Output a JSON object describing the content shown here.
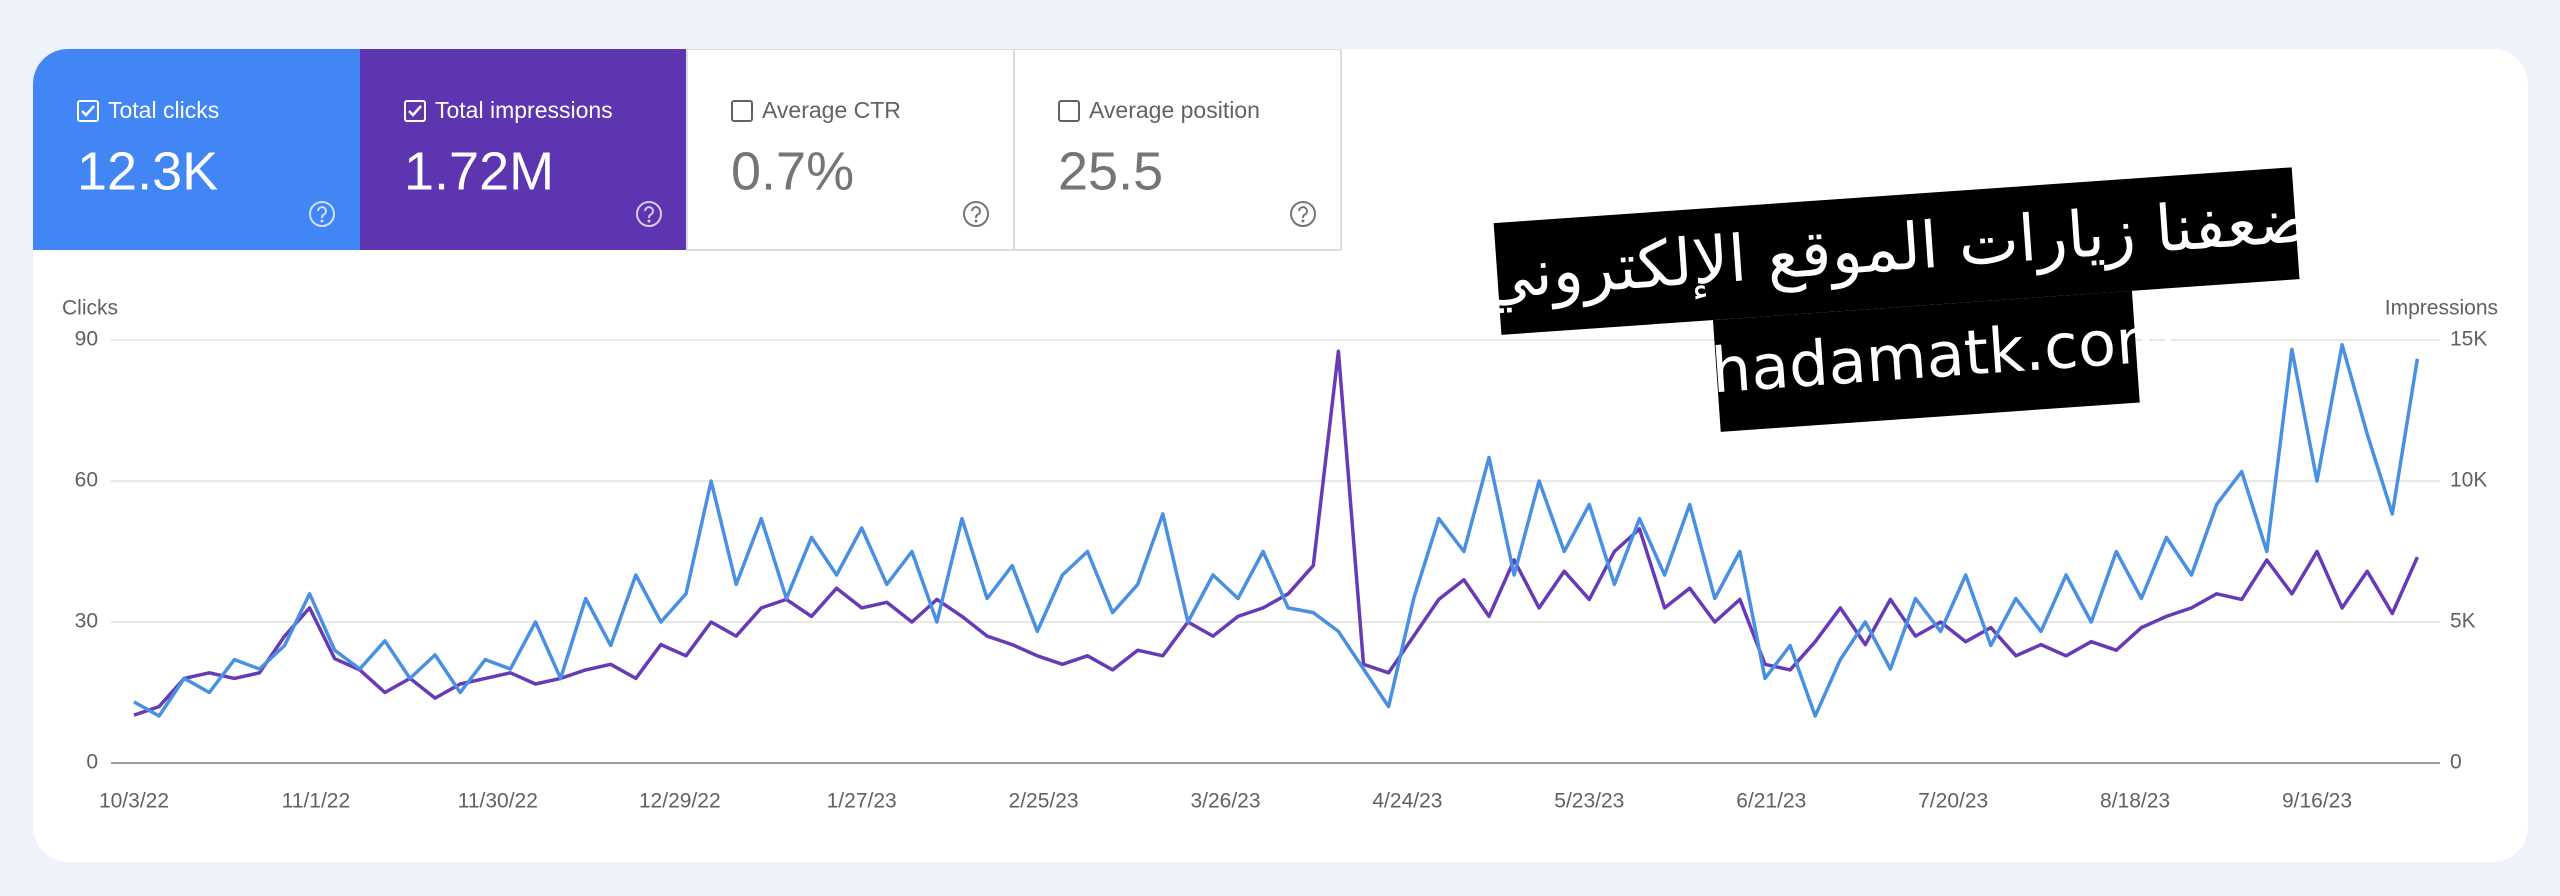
{
  "cards": [
    {
      "label": "Total clicks",
      "value": "12.3K",
      "checked": true,
      "color": "#4285f4"
    },
    {
      "label": "Total impressions",
      "value": "1.72M",
      "checked": true,
      "color": "#5e35b1"
    },
    {
      "label": "Average CTR",
      "value": "0.7%",
      "checked": false
    },
    {
      "label": "Average position",
      "value": "25.5",
      "checked": false
    }
  ],
  "overlay": {
    "lines": [
      "ضعفنا زيارات الموقع الإلكتروني",
      "khadamatk.com"
    ]
  },
  "chart_data": {
    "type": "line",
    "ylabel": "Clicks",
    "y2label": "Impressions",
    "x": [
      "10/3/22",
      "10/7/22",
      "10/11/22",
      "10/15/22",
      "10/19/22",
      "10/23/22",
      "10/27/22",
      "10/31/22",
      "11/4/22",
      "11/8/22",
      "11/12/22",
      "11/16/22",
      "11/20/22",
      "11/24/22",
      "11/28/22",
      "12/2/22",
      "12/6/22",
      "12/10/22",
      "12/14/22",
      "12/18/22",
      "12/22/22",
      "12/26/22",
      "12/30/22",
      "1/3/23",
      "1/7/23",
      "1/11/23",
      "1/15/23",
      "1/19/23",
      "1/23/23",
      "1/27/23",
      "1/31/23",
      "2/4/23",
      "2/8/23",
      "2/12/23",
      "2/16/23",
      "2/20/23",
      "2/24/23",
      "2/28/23",
      "3/4/23",
      "3/8/23",
      "3/12/23",
      "3/16/23",
      "3/20/23",
      "3/24/23",
      "3/28/23",
      "4/1/23",
      "4/5/23",
      "4/9/23",
      "4/13/23",
      "4/17/23",
      "4/21/23",
      "4/25/23",
      "4/29/23",
      "5/3/23",
      "5/7/23",
      "5/11/23",
      "5/15/23",
      "5/19/23",
      "5/23/23",
      "5/27/23",
      "5/31/23",
      "6/4/23",
      "6/8/23",
      "6/12/23",
      "6/16/23",
      "6/20/23",
      "6/24/23",
      "6/28/23",
      "7/2/23",
      "7/6/23",
      "7/10/23",
      "7/14/23",
      "7/18/23",
      "7/22/23",
      "7/26/23",
      "7/30/23",
      "8/3/23",
      "8/7/23",
      "8/11/23",
      "8/15/23",
      "8/19/23",
      "8/23/23",
      "8/27/23",
      "8/31/23",
      "9/4/23",
      "9/8/23",
      "9/12/23",
      "9/16/23",
      "9/20/23",
      "9/24/23",
      "9/28/23",
      "10/2/23"
    ],
    "series": [
      {
        "color": "#4a90e2",
        "values": [
          13,
          10,
          18,
          15,
          22,
          20,
          25,
          36,
          24,
          20,
          26,
          18,
          23,
          15,
          22,
          20,
          30,
          18,
          35,
          25,
          40,
          30,
          36,
          60,
          38,
          52,
          35,
          48,
          40,
          50,
          38,
          45,
          30,
          52,
          35,
          42,
          28,
          40,
          45,
          32,
          38,
          53,
          30,
          40,
          35,
          45,
          33,
          32,
          28,
          20,
          12,
          35,
          52,
          45,
          65,
          40,
          60,
          45,
          55,
          38,
          52,
          40,
          55,
          35,
          45,
          18,
          25,
          10,
          22,
          30,
          20,
          35,
          28,
          40,
          25,
          35,
          28,
          40,
          30,
          45,
          35,
          48,
          40,
          55,
          62,
          45,
          88,
          60,
          89,
          70,
          53,
          86
        ]
      },
      {
        "color": "#673ab7",
        "axis": "y2",
        "values": [
          1700,
          2000,
          3000,
          3200,
          3000,
          3200,
          4500,
          5500,
          3700,
          3300,
          2500,
          3000,
          2300,
          2800,
          3000,
          3200,
          2800,
          3000,
          3300,
          3500,
          3000,
          4200,
          3800,
          5000,
          4500,
          5500,
          5800,
          5200,
          6200,
          5500,
          5700,
          5000,
          5800,
          5200,
          4500,
          4200,
          3800,
          3500,
          3800,
          3300,
          4000,
          3800,
          5000,
          4500,
          5200,
          5500,
          6000,
          7000,
          14600,
          3500,
          3200,
          4500,
          5800,
          6500,
          5200,
          7200,
          5500,
          6800,
          5800,
          7500,
          8300,
          5500,
          6200,
          5000,
          5800,
          3500,
          3300,
          4300,
          5500,
          4200,
          5800,
          4500,
          5000,
          4300,
          4800,
          3800,
          4200,
          3800,
          4300,
          4000,
          4800,
          5200,
          5500,
          6000,
          5800,
          7200,
          6000,
          7500,
          5500,
          6800,
          5300,
          7300
        ]
      }
    ],
    "xticks": [
      "10/3/22",
      "11/1/22",
      "11/30/22",
      "12/29/22",
      "1/27/23",
      "2/25/23",
      "3/26/23",
      "4/24/23",
      "5/23/23",
      "6/21/23",
      "7/20/23",
      "8/18/23",
      "9/16/23"
    ],
    "ylim": [
      0,
      90
    ],
    "yticks": [
      0,
      30,
      60,
      90
    ],
    "y2lim": [
      0,
      15000
    ],
    "y2ticks": [
      0,
      {
        "value": 5000,
        "label": "5K"
      },
      {
        "value": 10000,
        "label": "10K"
      },
      {
        "value": 15000,
        "label": "15K"
      }
    ],
    "grid": true
  }
}
